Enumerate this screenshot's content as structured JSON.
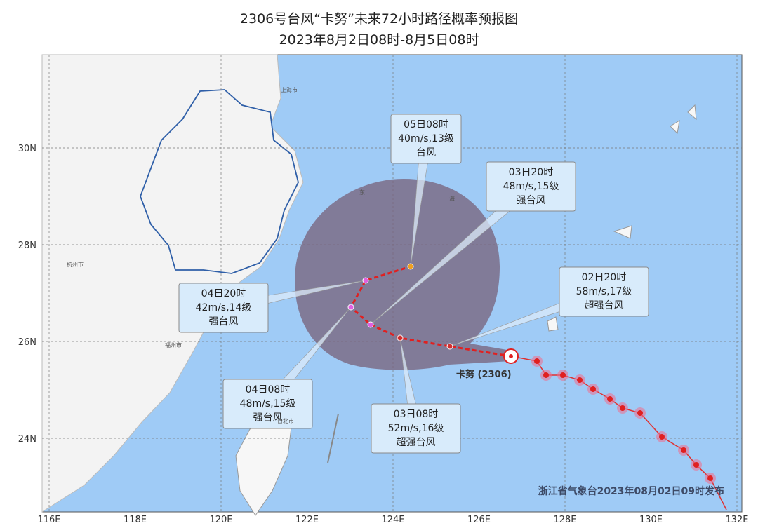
{
  "header": {
    "title": "2306号台风“卡努”未来72小时路径概率预报图",
    "subtitle": "2023年8月2日08时-8月5日08时"
  },
  "axes": {
    "x_labels": [
      "116E",
      "118E",
      "120E",
      "122E",
      "124E",
      "126E",
      "128E",
      "130E",
      "132E"
    ],
    "y_labels": [
      "30N",
      "28N",
      "26N",
      "24N"
    ]
  },
  "forecasts": [
    {
      "time": "02日20时",
      "wind": "58m/s,17级",
      "grade": "超强台风"
    },
    {
      "time": "03日08时",
      "wind": "52m/s,16级",
      "grade": "超强台风"
    },
    {
      "time": "03日20时",
      "wind": "48m/s,15级",
      "grade": "强台风"
    },
    {
      "time": "04日08时",
      "wind": "48m/s,15级",
      "grade": "强台风"
    },
    {
      "time": "04日20时",
      "wind": "42m/s,14级",
      "grade": "强台风"
    },
    {
      "time": "05日08时",
      "wind": "40m/s,13级",
      "grade": "台风"
    }
  ],
  "map_labels": [
    "上海市",
    "杭州市",
    "福州市",
    "台北市",
    "东",
    "海"
  ],
  "typhoon_label": "卡努 (2306)",
  "issuer": "浙江省气象台2023年08月02日09时发布"
}
